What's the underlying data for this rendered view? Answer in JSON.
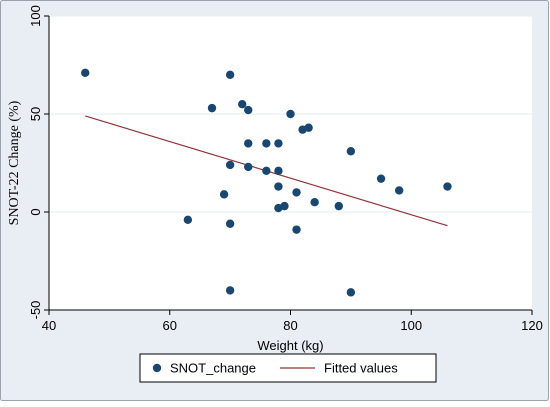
{
  "chart_data": {
    "type": "scatter",
    "xlabel": "Weight (kg)",
    "ylabel": "SNOT-22 Change (%)",
    "xlim": [
      40,
      120
    ],
    "ylim": [
      -50,
      100
    ],
    "x_ticks": [
      40,
      60,
      80,
      100,
      120
    ],
    "y_ticks": [
      -50,
      0,
      50,
      100
    ],
    "grid": "horizontal",
    "legend_position": "bottom",
    "colors": {
      "background": "#e9eef4",
      "plot_background": "#ffffff",
      "grid": "#e7ecf1",
      "axis": "#000000",
      "points": "#1a476f",
      "fit_line": "#90353b",
      "legend_border": "#000000"
    },
    "series": [
      {
        "name": "SNOT_change",
        "kind": "scatter",
        "points": [
          {
            "x": 46,
            "y": 71
          },
          {
            "x": 63,
            "y": -4
          },
          {
            "x": 67,
            "y": 53
          },
          {
            "x": 69,
            "y": 9
          },
          {
            "x": 70,
            "y": 70
          },
          {
            "x": 70,
            "y": 24
          },
          {
            "x": 70,
            "y": -6
          },
          {
            "x": 70,
            "y": -40
          },
          {
            "x": 72,
            "y": 55
          },
          {
            "x": 73,
            "y": 52
          },
          {
            "x": 73,
            "y": 35
          },
          {
            "x": 73,
            "y": 23
          },
          {
            "x": 76,
            "y": 35
          },
          {
            "x": 76,
            "y": 21
          },
          {
            "x": 78,
            "y": 35
          },
          {
            "x": 78,
            "y": 21
          },
          {
            "x": 78,
            "y": 13
          },
          {
            "x": 78,
            "y": 2
          },
          {
            "x": 79,
            "y": 3
          },
          {
            "x": 80,
            "y": 50
          },
          {
            "x": 81,
            "y": 10
          },
          {
            "x": 81,
            "y": -9
          },
          {
            "x": 82,
            "y": 42
          },
          {
            "x": 83,
            "y": 43
          },
          {
            "x": 84,
            "y": 5
          },
          {
            "x": 88,
            "y": 3
          },
          {
            "x": 90,
            "y": 31
          },
          {
            "x": 90,
            "y": -41
          },
          {
            "x": 95,
            "y": 17
          },
          {
            "x": 98,
            "y": 11
          },
          {
            "x": 106,
            "y": 13
          }
        ]
      },
      {
        "name": "Fitted values",
        "kind": "line",
        "points": [
          {
            "x": 46,
            "y": 49
          },
          {
            "x": 106,
            "y": -7
          }
        ]
      }
    ]
  }
}
